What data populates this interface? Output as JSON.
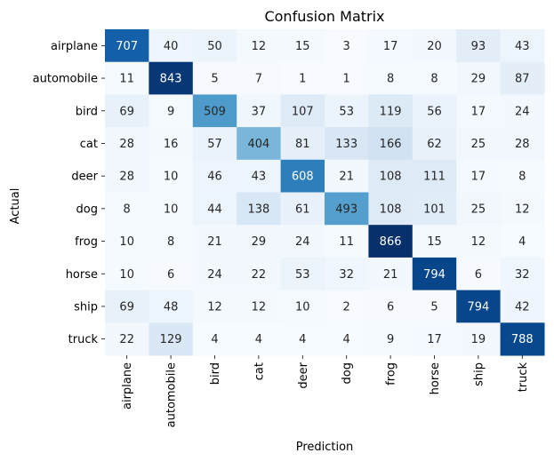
{
  "chart_data": {
    "type": "heatmap",
    "title": "Confusion Matrix",
    "xlabel": "Prediction",
    "ylabel": "Actual",
    "colormap": "Blues",
    "grid": false,
    "colorbar": false,
    "x_categories": [
      "airplane",
      "automobile",
      "bird",
      "cat",
      "deer",
      "dog",
      "frog",
      "horse",
      "ship",
      "truck"
    ],
    "y_categories": [
      "airplane",
      "automobile",
      "bird",
      "cat",
      "deer",
      "dog",
      "frog",
      "horse",
      "ship",
      "truck"
    ],
    "values": [
      [
        707,
        40,
        50,
        12,
        15,
        3,
        17,
        20,
        93,
        43
      ],
      [
        11,
        843,
        5,
        7,
        1,
        1,
        8,
        8,
        29,
        87
      ],
      [
        69,
        9,
        509,
        37,
        107,
        53,
        119,
        56,
        17,
        24
      ],
      [
        28,
        16,
        57,
        404,
        81,
        133,
        166,
        62,
        25,
        28
      ],
      [
        28,
        10,
        46,
        43,
        608,
        21,
        108,
        111,
        17,
        8
      ],
      [
        8,
        10,
        44,
        138,
        61,
        493,
        108,
        101,
        25,
        12
      ],
      [
        10,
        8,
        21,
        29,
        24,
        11,
        866,
        15,
        12,
        4
      ],
      [
        10,
        6,
        24,
        22,
        53,
        32,
        21,
        794,
        6,
        32
      ],
      [
        69,
        48,
        12,
        12,
        10,
        2,
        6,
        5,
        794,
        42
      ],
      [
        22,
        129,
        4,
        4,
        4,
        4,
        9,
        17,
        19,
        788
      ]
    ]
  }
}
